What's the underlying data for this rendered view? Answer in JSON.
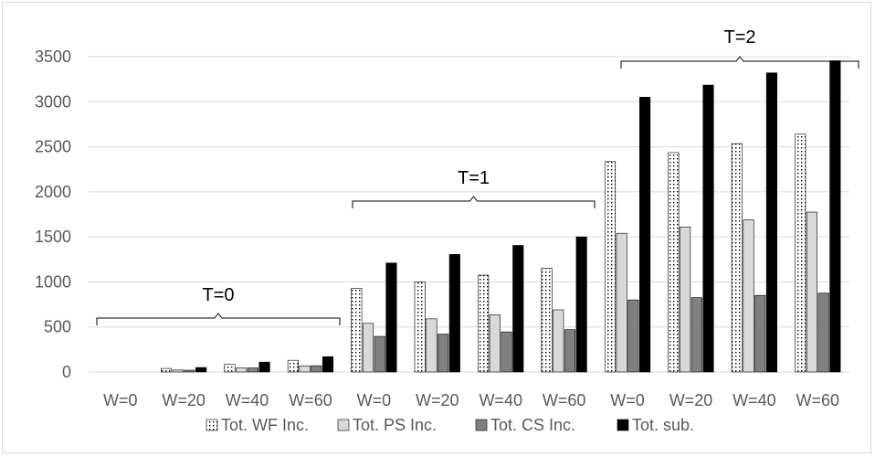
{
  "chart_data": {
    "type": "bar",
    "categories": [
      "W=0",
      "W=20",
      "W=40",
      "W=60",
      "W=0",
      "W=20",
      "W=40",
      "W=60",
      "W=0",
      "W=20",
      "W=40",
      "W=60"
    ],
    "groups": [
      {
        "label": "T=0",
        "start": 0,
        "end": 3
      },
      {
        "label": "T=1",
        "start": 4,
        "end": 7
      },
      {
        "label": "T=2",
        "start": 8,
        "end": 11
      }
    ],
    "series": [
      {
        "name": "Tot. WF Inc.",
        "pattern": "dots",
        "color": "#ffffff",
        "values": [
          0,
          40,
          85,
          130,
          930,
          1000,
          1075,
          1150,
          2335,
          2435,
          2535,
          2640
        ]
      },
      {
        "name": "Tot. PS Inc.",
        "pattern": "solid",
        "color": "#d9d9d9",
        "values": [
          0,
          22,
          45,
          68,
          540,
          590,
          635,
          690,
          1540,
          1610,
          1690,
          1775
        ]
      },
      {
        "name": "Tot. CS Inc.",
        "pattern": "solid",
        "color": "#808080",
        "values": [
          0,
          20,
          45,
          70,
          395,
          420,
          445,
          470,
          800,
          825,
          850,
          875
        ]
      },
      {
        "name": "Tot. sub.",
        "pattern": "solid",
        "color": "#000000",
        "values": [
          0,
          50,
          110,
          170,
          1210,
          1305,
          1405,
          1500,
          3050,
          3185,
          3320,
          3455
        ]
      }
    ],
    "ylim": [
      0,
      3500
    ],
    "yticks": [
      0,
      500,
      1000,
      1500,
      2000,
      2500,
      3000,
      3500
    ],
    "grid": true,
    "legend_position": "bottom",
    "title": "",
    "xlabel": "",
    "ylabel": ""
  }
}
